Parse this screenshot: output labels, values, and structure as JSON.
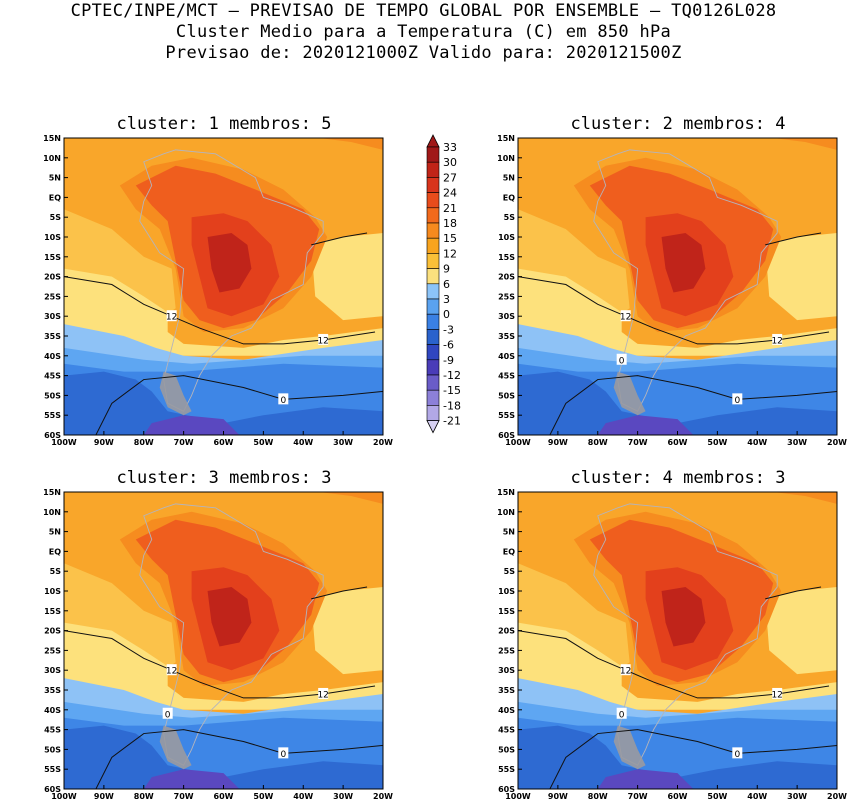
{
  "header": {
    "line1": "CPTEC/INPE/MCT – PREVISAO DE TEMPO GLOBAL POR ENSEMBLE – TQ0126L028",
    "line2": "Cluster Medio para a Temperatura (C) em 850 hPa",
    "line3": "Previsao de: 2020121000Z   Valido para: 2020121500Z"
  },
  "chart_data": [
    {
      "type": "heatmap",
      "title": "cluster: 1   membros: 5",
      "lon_ticks": [
        "100W",
        "90W",
        "80W",
        "70W",
        "60W",
        "50W",
        "40W",
        "30W",
        "20W"
      ],
      "lat_ticks": [
        "15N",
        "10N",
        "5N",
        "EQ",
        "5S",
        "10S",
        "15S",
        "20S",
        "25S",
        "30S",
        "35S",
        "40S",
        "45S",
        "50S",
        "55S",
        "60S"
      ],
      "xlim": [
        -100,
        -20
      ],
      "ylim": [
        -60,
        15
      ],
      "contour_labels": [
        "12",
        "12",
        "0"
      ]
    },
    {
      "type": "heatmap",
      "title": "cluster: 2   membros: 4",
      "lon_ticks": [
        "100W",
        "90W",
        "80W",
        "70W",
        "60W",
        "50W",
        "40W",
        "30W",
        "20W"
      ],
      "lat_ticks": [
        "15N",
        "10N",
        "5N",
        "EQ",
        "5S",
        "10S",
        "15S",
        "20S",
        "25S",
        "30S",
        "35S",
        "40S",
        "45S",
        "50S",
        "55S",
        "60S"
      ],
      "xlim": [
        -100,
        -20
      ],
      "ylim": [
        -60,
        15
      ],
      "contour_labels": [
        "12",
        "12",
        "0",
        "0"
      ]
    },
    {
      "type": "heatmap",
      "title": "cluster: 3   membros: 3",
      "lon_ticks": [
        "100W",
        "90W",
        "80W",
        "70W",
        "60W",
        "50W",
        "40W",
        "30W",
        "20W"
      ],
      "lat_ticks": [
        "15N",
        "10N",
        "5N",
        "EQ",
        "5S",
        "10S",
        "15S",
        "20S",
        "25S",
        "30S",
        "35S",
        "40S",
        "45S",
        "50S",
        "55S",
        "60S"
      ],
      "xlim": [
        -100,
        -20
      ],
      "ylim": [
        -60,
        15
      ],
      "contour_labels": [
        "12",
        "12",
        "0",
        "0"
      ]
    },
    {
      "type": "heatmap",
      "title": "cluster: 4   membros: 3",
      "lon_ticks": [
        "100W",
        "90W",
        "80W",
        "70W",
        "60W",
        "50W",
        "40W",
        "30W",
        "20W"
      ],
      "lat_ticks": [
        "15N",
        "10N",
        "5N",
        "EQ",
        "5S",
        "10S",
        "15S",
        "20S",
        "25S",
        "30S",
        "35S",
        "40S",
        "45S",
        "50S",
        "55S",
        "60S"
      ],
      "xlim": [
        -100,
        -20
      ],
      "ylim": [
        -60,
        15
      ],
      "contour_labels": [
        "12",
        "12",
        "0",
        "0"
      ]
    }
  ],
  "colorbar": {
    "labels": [
      "33",
      "30",
      "27",
      "24",
      "21",
      "18",
      "15",
      "12",
      "9",
      "6",
      "3",
      "0",
      "-3",
      "-6",
      "-9",
      "-12",
      "-15",
      "-18",
      "-21"
    ],
    "colors": [
      "#a01818",
      "#c02418",
      "#d8341c",
      "#e84c1c",
      "#f26a1c",
      "#f68a1e",
      "#f8a41e",
      "#fac038",
      "#fbe07e",
      "#8cc4f8",
      "#5aa2f0",
      "#3a80e4",
      "#2a62cc",
      "#3046c0",
      "#4a3cb8",
      "#6a5cc8",
      "#8c80d8",
      "#b2a8e6",
      "#d6d0f2"
    ]
  }
}
